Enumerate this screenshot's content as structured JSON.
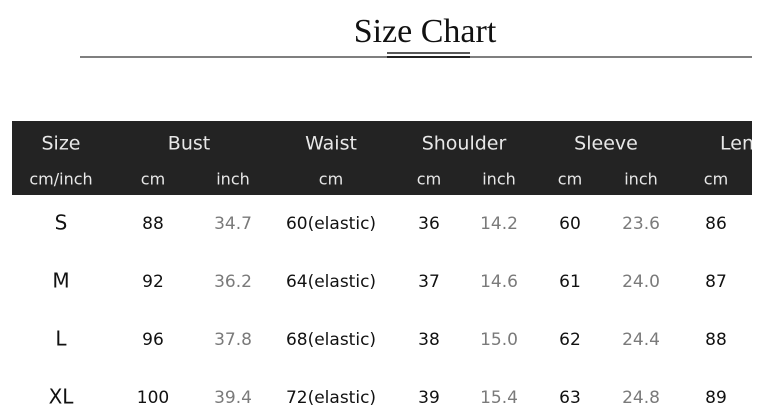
{
  "title": "Size Chart",
  "table": {
    "header": [
      "Size",
      "Bust",
      "Waist",
      "Shoulder",
      "Sleeve",
      "Len"
    ],
    "subheader": [
      "cm/inch",
      "cm",
      "inch",
      "cm",
      "cm",
      "inch",
      "cm",
      "inch",
      "cm"
    ],
    "rows": [
      [
        "S",
        "88",
        "34.7",
        "60(elastic)",
        "36",
        "14.2",
        "60",
        "23.6",
        "86"
      ],
      [
        "M",
        "92",
        "36.2",
        "64(elastic)",
        "37",
        "14.6",
        "61",
        "24.0",
        "87"
      ],
      [
        "L",
        "96",
        "37.8",
        "68(elastic)",
        "38",
        "15.0",
        "62",
        "24.4",
        "88"
      ],
      [
        "XL",
        "100",
        "39.4",
        "72(elastic)",
        "39",
        "15.4",
        "63",
        "24.8",
        "89"
      ]
    ]
  }
}
